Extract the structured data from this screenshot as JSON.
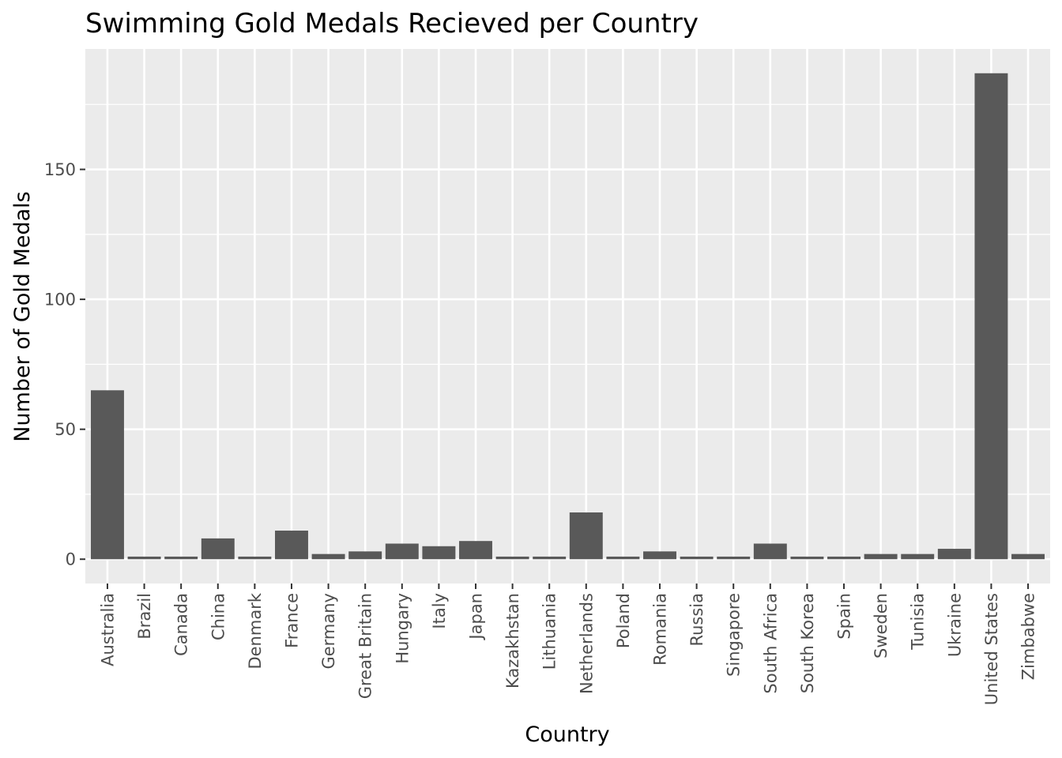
{
  "chart_data": {
    "type": "bar",
    "title": "Swimming Gold Medals Recieved per Country",
    "xlabel": "Country",
    "ylabel": "Number of Gold Medals",
    "categories": [
      "Australia",
      "Brazil",
      "Canada",
      "China",
      "Denmark",
      "France",
      "Germany",
      "Great Britain",
      "Hungary",
      "Italy",
      "Japan",
      "Kazakhstan",
      "Lithuania",
      "Netherlands",
      "Poland",
      "Romania",
      "Russia",
      "Singapore",
      "South Africa",
      "South Korea",
      "Spain",
      "Sweden",
      "Tunisia",
      "Ukraine",
      "United States",
      "Zimbabwe"
    ],
    "values": [
      65,
      1,
      1,
      8,
      1,
      11,
      2,
      3,
      6,
      5,
      7,
      1,
      1,
      18,
      1,
      3,
      1,
      1,
      6,
      1,
      1,
      2,
      2,
      4,
      187,
      2
    ],
    "ylim": [
      -9.35,
      196.35
    ],
    "yticks": [
      0,
      50,
      100,
      150
    ],
    "grid": true,
    "legend": "none",
    "colors": {
      "bar": "#595959",
      "panel": "#ebebeb",
      "grid": "#ffffff",
      "tick_text": "#4d4d4d"
    }
  }
}
